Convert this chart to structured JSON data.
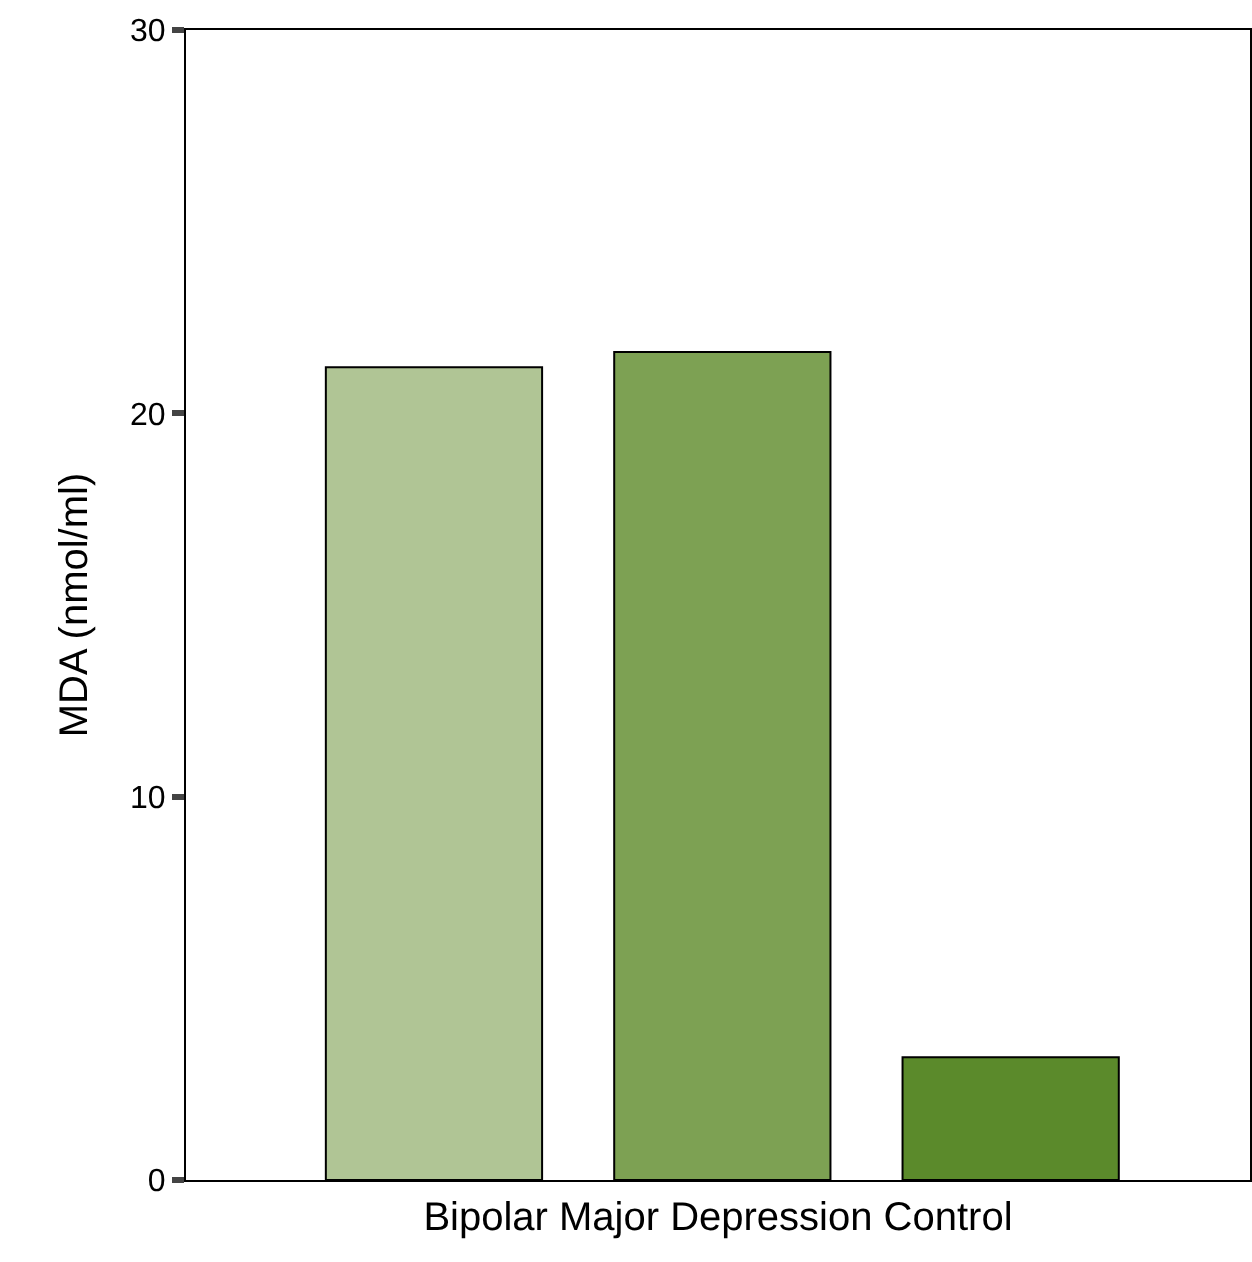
{
  "chart_data": {
    "type": "bar",
    "categories": [
      null,
      null,
      null
    ],
    "values": [
      21.2,
      21.6,
      3.2
    ],
    "colors": [
      "#b0c595",
      "#7da153",
      "#5b8a2b"
    ],
    "xlabel": "Bipolar Major Depression Control",
    "ylabel": "MDA (nmol/ml)",
    "ylim": [
      0,
      30
    ],
    "yticks": [
      0,
      10,
      20,
      30
    ]
  }
}
